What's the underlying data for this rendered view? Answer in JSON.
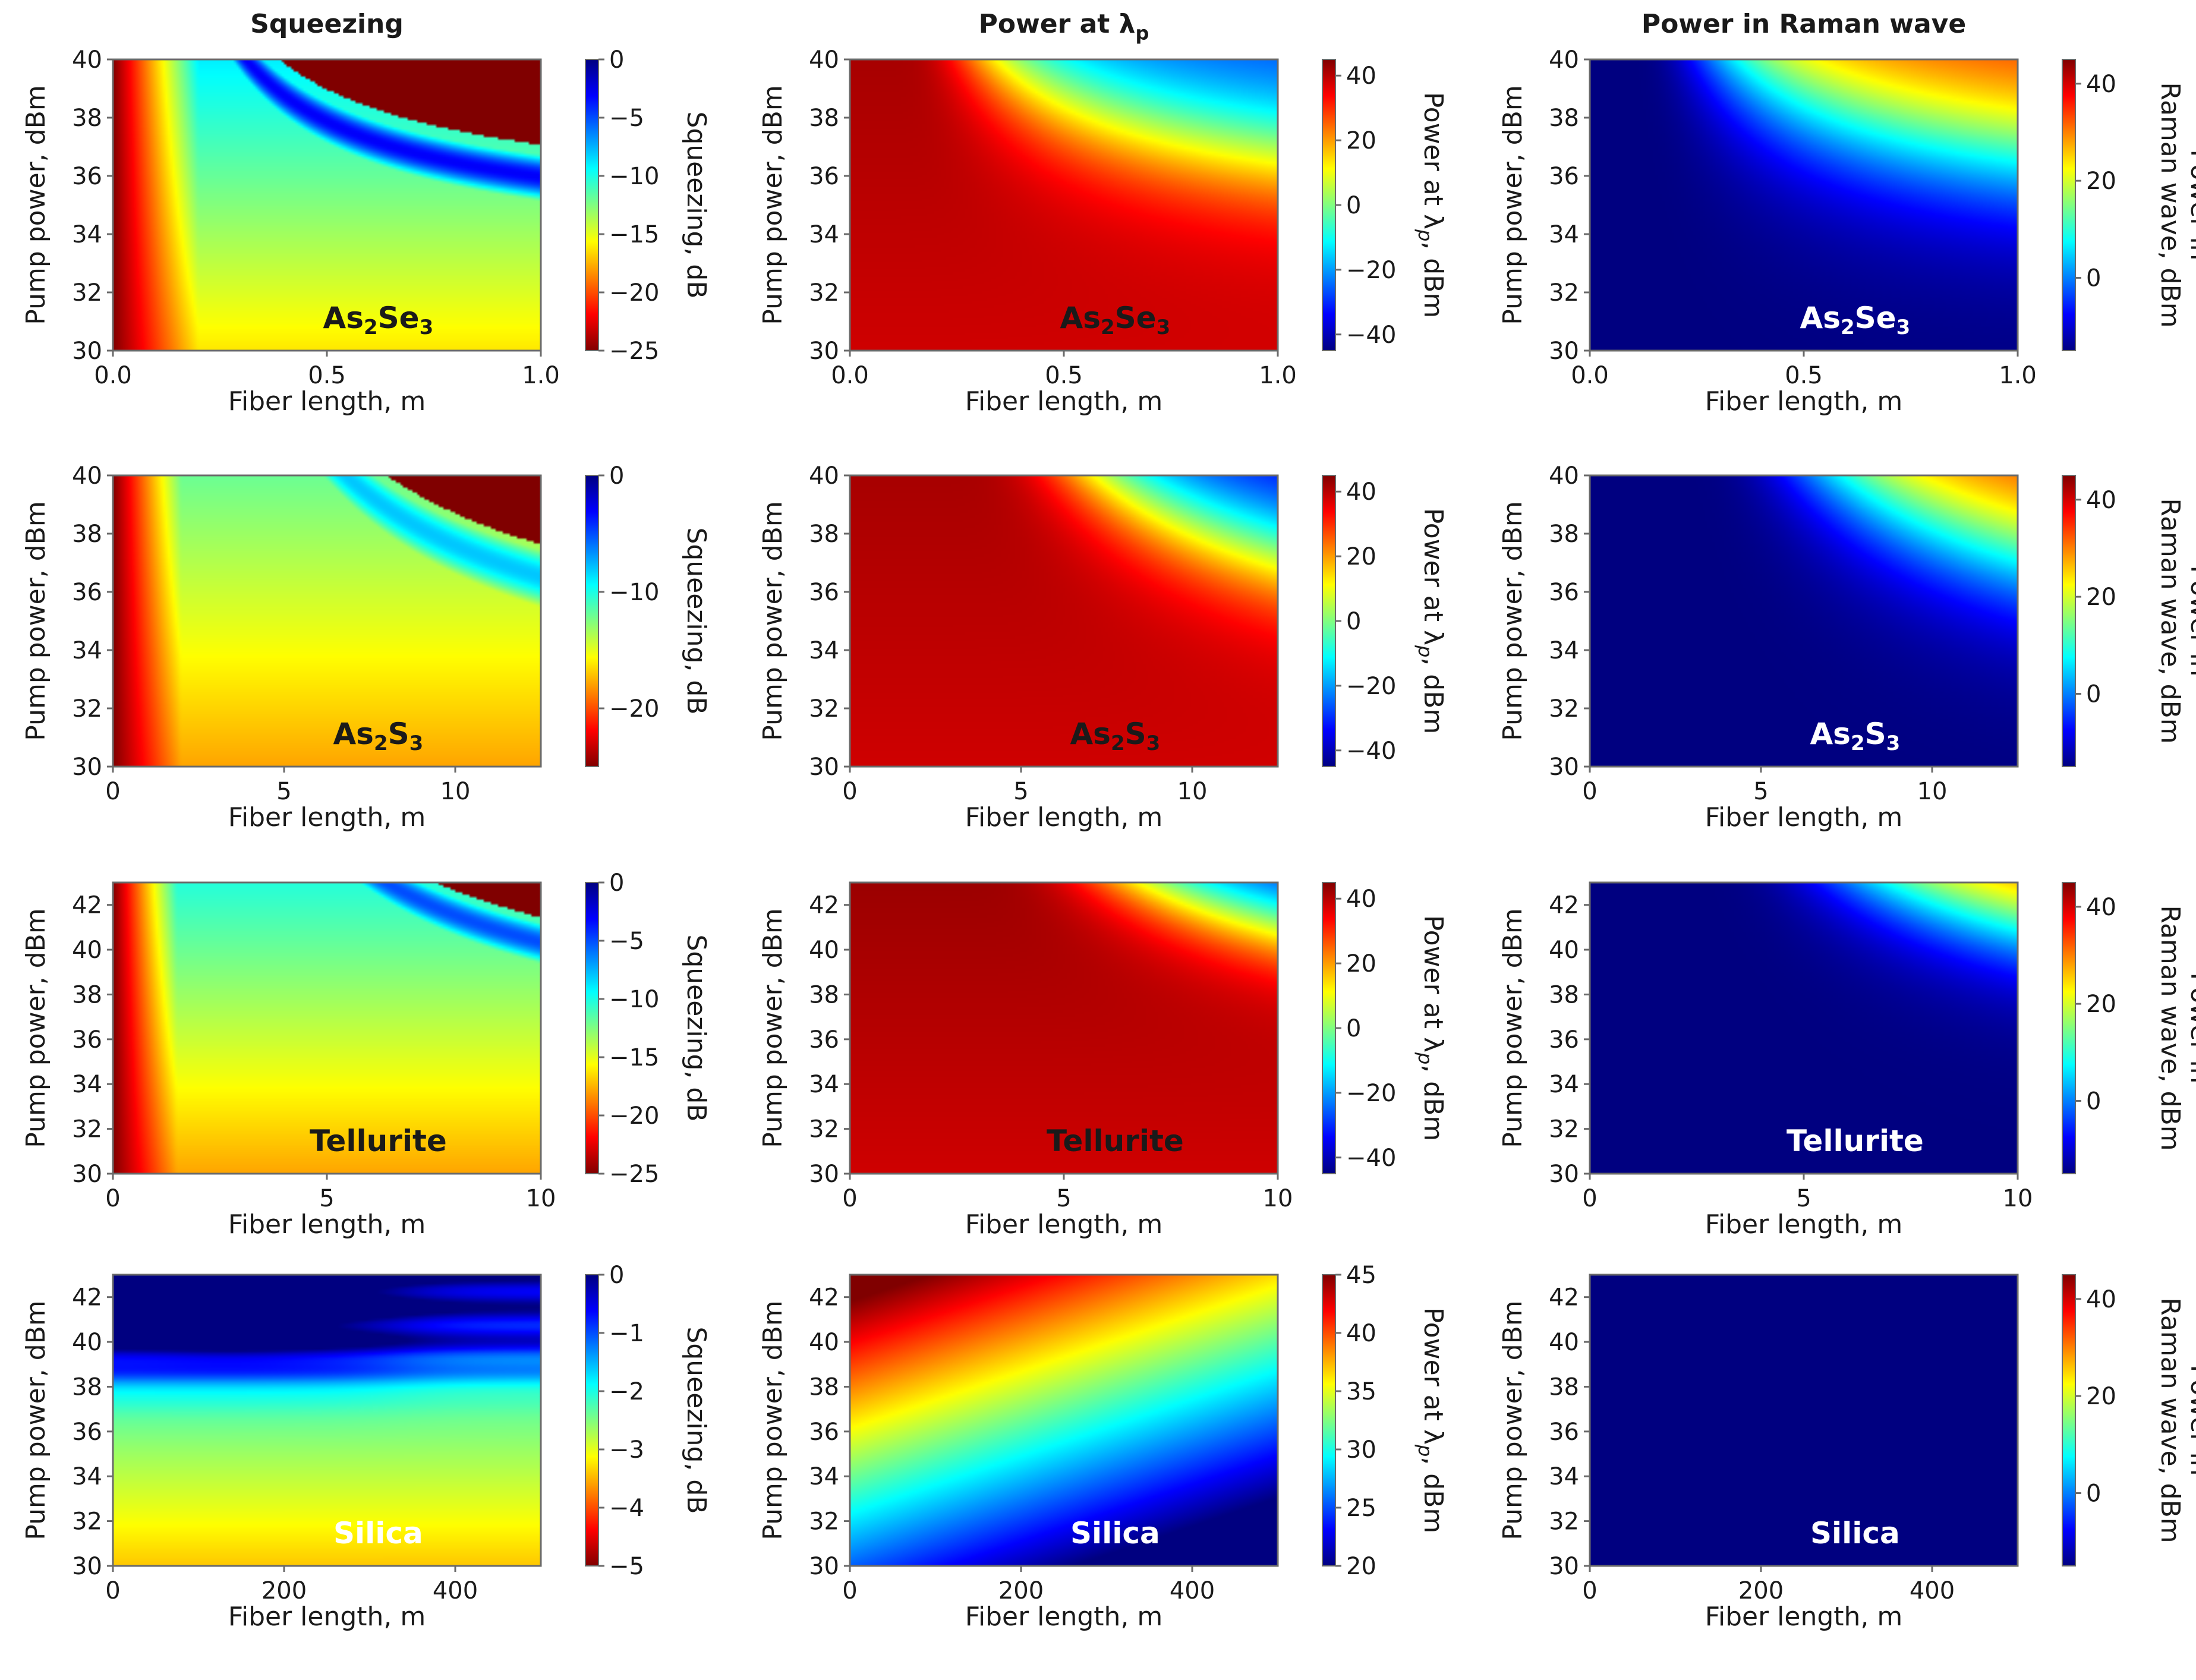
{
  "column_titles": [
    {
      "main": "Squeezing"
    },
    {
      "main": "Power at λ",
      "sub": "p"
    },
    {
      "main": "Power in Raman wave"
    }
  ],
  "colors": {
    "colormap": "jet",
    "text": "#1a1a1a",
    "frame": "#6a6a6a"
  },
  "chart_data": [
    {
      "type": "heatmap",
      "material": "As2Se3",
      "material_label": {
        "parts": [
          "As",
          "2",
          "Se",
          "3"
        ],
        "color": "dark"
      },
      "quantity": "squeezing",
      "title": "Squeezing",
      "xlabel": "Fiber length, m",
      "ylabel": "Pump power, dBm",
      "xlim": [
        0,
        1
      ],
      "ylim": [
        30,
        40
      ],
      "xticks": [
        {
          "v": 0,
          "t": "0.0"
        },
        {
          "v": 0.5,
          "t": "0.5"
        },
        {
          "v": 1,
          "t": "1.0"
        }
      ],
      "yticks": [
        30,
        32,
        34,
        36,
        38,
        40
      ],
      "colorbar": {
        "label": "Squeezing, dB",
        "range": [
          -25,
          0
        ],
        "ticks": [
          0,
          -5,
          -10,
          -15,
          -20,
          -25
        ],
        "reversed": true
      },
      "field": {
        "kind": "squeeze",
        "cross": {
          "k": 0.73,
          "y0": 34.5,
          "a": 3.1
        },
        "bandwidth": 1.1,
        "peak": -22,
        "base": -16,
        "ramp": 0.2
      }
    },
    {
      "type": "heatmap",
      "material": "As2Se3",
      "material_label": {
        "parts": [
          "As",
          "2",
          "Se",
          "3"
        ],
        "color": "dark"
      },
      "quantity": "pump_power",
      "title": "Power at λp",
      "xlabel": "Fiber length, m",
      "ylabel": "Pump power, dBm",
      "xlim": [
        0,
        1
      ],
      "ylim": [
        30,
        40
      ],
      "xticks": [
        {
          "v": 0,
          "t": "0.0"
        },
        {
          "v": 0.5,
          "t": "0.5"
        },
        {
          "v": 1,
          "t": "1.0"
        }
      ],
      "yticks": [
        30,
        32,
        34,
        36,
        38,
        40
      ],
      "colorbar": {
        "label": "Power at λp, dBm",
        "range": [
          -45,
          45
        ],
        "ticks": [
          40,
          20,
          0,
          -20,
          -40
        ],
        "reversed": false
      },
      "field": {
        "kind": "pump",
        "cross": {
          "k": 0.73,
          "y0": 34.5,
          "a": 3.1
        },
        "lo": -30,
        "width": 1.3
      }
    },
    {
      "type": "heatmap",
      "material": "As2Se3",
      "material_label": {
        "parts": [
          "As",
          "2",
          "Se",
          "3"
        ],
        "color": "light"
      },
      "quantity": "raman_power",
      "title": "Power in Raman wave",
      "xlabel": "Fiber length, m",
      "ylabel": "Pump power, dBm",
      "xlim": [
        0,
        1
      ],
      "ylim": [
        30,
        40
      ],
      "xticks": [
        {
          "v": 0,
          "t": "0.0"
        },
        {
          "v": 0.5,
          "t": "0.5"
        },
        {
          "v": 1,
          "t": "1.0"
        }
      ],
      "yticks": [
        30,
        32,
        34,
        36,
        38,
        40
      ],
      "colorbar": {
        "label": [
          "Power in",
          "Raman wave, dBm"
        ],
        "range": [
          -15,
          45
        ],
        "ticks": [
          40,
          20,
          0
        ],
        "reversed": false
      },
      "field": {
        "kind": "raman",
        "cross": {
          "k": 0.73,
          "y0": 34.5,
          "a": 3.1
        },
        "width": 1.5
      }
    },
    {
      "type": "heatmap",
      "material": "As2S3",
      "material_label": {
        "parts": [
          "As",
          "2",
          "S",
          "3"
        ],
        "color": "dark"
      },
      "quantity": "squeezing",
      "title": "Squeezing",
      "xlabel": "Fiber length, m",
      "ylabel": "Pump power, dBm",
      "xlim": [
        0,
        12.5
      ],
      "ylim": [
        30,
        40
      ],
      "xticks": [
        {
          "v": 0,
          "t": "0"
        },
        {
          "v": 5,
          "t": "5"
        },
        {
          "v": 10,
          "t": "10"
        }
      ],
      "yticks": [
        30,
        32,
        34,
        36,
        38,
        40
      ],
      "colorbar": {
        "label": "Squeezing, dB",
        "range": [
          -25,
          0
        ],
        "ticks": [
          0,
          -10,
          -20
        ],
        "reversed": true
      },
      "field": {
        "kind": "squeeze",
        "cross": {
          "k": 10,
          "y0": 32.3,
          "a": 6.2
        },
        "bandwidth": 1.5,
        "peak": -17,
        "base": -13,
        "ramp": 2
      }
    },
    {
      "type": "heatmap",
      "material": "As2S3",
      "material_label": {
        "parts": [
          "As",
          "2",
          "S",
          "3"
        ],
        "color": "dark"
      },
      "quantity": "pump_power",
      "title": "Power at λp",
      "xlabel": "Fiber length, m",
      "ylabel": "Pump power, dBm",
      "xlim": [
        0,
        12.5
      ],
      "ylim": [
        30,
        40
      ],
      "xticks": [
        {
          "v": 0,
          "t": "0"
        },
        {
          "v": 5,
          "t": "5"
        },
        {
          "v": 10,
          "t": "10"
        }
      ],
      "yticks": [
        30,
        32,
        34,
        36,
        38,
        40
      ],
      "colorbar": {
        "label": "Power at λp, dBm",
        "range": [
          -45,
          45
        ],
        "ticks": [
          40,
          20,
          0,
          -20,
          -40
        ],
        "reversed": false
      },
      "field": {
        "kind": "pump",
        "cross": {
          "k": 10,
          "y0": 32.3,
          "a": 6.2
        },
        "lo": -38,
        "width": 1.2
      }
    },
    {
      "type": "heatmap",
      "material": "As2S3",
      "material_label": {
        "parts": [
          "As",
          "2",
          "S",
          "3"
        ],
        "color": "light"
      },
      "quantity": "raman_power",
      "title": "Power in Raman wave",
      "xlabel": "Fiber length, m",
      "ylabel": "Pump power, dBm",
      "xlim": [
        0,
        12.5
      ],
      "ylim": [
        30,
        40
      ],
      "xticks": [
        {
          "v": 0,
          "t": "0"
        },
        {
          "v": 5,
          "t": "5"
        },
        {
          "v": 10,
          "t": "10"
        }
      ],
      "yticks": [
        30,
        32,
        34,
        36,
        38,
        40
      ],
      "colorbar": {
        "label": [
          "Power in",
          "Raman wave, dBm"
        ],
        "range": [
          -15,
          45
        ],
        "ticks": [
          40,
          20,
          0
        ],
        "reversed": false
      },
      "field": {
        "kind": "raman",
        "cross": {
          "k": 10,
          "y0": 32.3,
          "a": 6.2
        },
        "width": 1.4
      }
    },
    {
      "type": "heatmap",
      "material": "Tellurite",
      "material_label": {
        "parts": [
          "Tellurite"
        ],
        "color": "dark"
      },
      "quantity": "squeezing",
      "title": "Squeezing",
      "xlabel": "Fiber length, m",
      "ylabel": "Pump power, dBm",
      "xlim": [
        0,
        10
      ],
      "ylim": [
        30,
        43
      ],
      "xticks": [
        {
          "v": 0,
          "t": "0"
        },
        {
          "v": 5,
          "t": "5"
        },
        {
          "v": 10,
          "t": "10"
        }
      ],
      "yticks": [
        30,
        32,
        34,
        36,
        38,
        40,
        42
      ],
      "colorbar": {
        "label": "Squeezing, dB",
        "range": [
          -25,
          0
        ],
        "ticks": [
          0,
          -5,
          -10,
          -15,
          -20,
          -25
        ],
        "reversed": true
      },
      "field": {
        "kind": "squeeze",
        "cross": {
          "k": 7.3,
          "y0": 35.5,
          "a": 7.5
        },
        "bandwidth": 1.4,
        "peak": -20,
        "base": -13,
        "ramp": 1.5
      }
    },
    {
      "type": "heatmap",
      "material": "Tellurite",
      "material_label": {
        "parts": [
          "Tellurite"
        ],
        "color": "dark"
      },
      "quantity": "pump_power",
      "title": "Power at λp",
      "xlabel": "Fiber length, m",
      "ylabel": "Pump power, dBm",
      "xlim": [
        0,
        10
      ],
      "ylim": [
        30,
        43
      ],
      "xticks": [
        {
          "v": 0,
          "t": "0"
        },
        {
          "v": 5,
          "t": "5"
        },
        {
          "v": 10,
          "t": "10"
        }
      ],
      "yticks": [
        30,
        32,
        34,
        36,
        38,
        40,
        42
      ],
      "colorbar": {
        "label": "Power at λp, dBm",
        "range": [
          -45,
          45
        ],
        "ticks": [
          40,
          20,
          0,
          -20,
          -40
        ],
        "reversed": false
      },
      "field": {
        "kind": "pump",
        "cross": {
          "k": 7.3,
          "y0": 35.5,
          "a": 7.5
        },
        "lo": -38,
        "width": 1.2
      }
    },
    {
      "type": "heatmap",
      "material": "Tellurite",
      "material_label": {
        "parts": [
          "Tellurite"
        ],
        "color": "light"
      },
      "quantity": "raman_power",
      "title": "Power in Raman wave",
      "xlabel": "Fiber length, m",
      "ylabel": "Pump power, dBm",
      "xlim": [
        0,
        10
      ],
      "ylim": [
        30,
        43
      ],
      "xticks": [
        {
          "v": 0,
          "t": "0"
        },
        {
          "v": 5,
          "t": "5"
        },
        {
          "v": 10,
          "t": "10"
        }
      ],
      "yticks": [
        30,
        32,
        34,
        36,
        38,
        40,
        42
      ],
      "colorbar": {
        "label": [
          "Power in",
          "Raman wave, dBm"
        ],
        "range": [
          -15,
          45
        ],
        "ticks": [
          40,
          20,
          0
        ],
        "reversed": false
      },
      "field": {
        "kind": "raman",
        "cross": {
          "k": 7.3,
          "y0": 35.5,
          "a": 7.5
        },
        "width": 1.4
      }
    },
    {
      "type": "heatmap",
      "material": "Silica",
      "material_label": {
        "parts": [
          "Silica"
        ],
        "color": "light"
      },
      "quantity": "squeezing",
      "title": "Squeezing",
      "xlabel": "Fiber length, m",
      "ylabel": "Pump power, dBm",
      "xlim": [
        0,
        500
      ],
      "ylim": [
        30,
        43
      ],
      "xticks": [
        {
          "v": 0,
          "t": "0"
        },
        {
          "v": 200,
          "t": "200"
        },
        {
          "v": 400,
          "t": "400"
        }
      ],
      "yticks": [
        30,
        32,
        34,
        36,
        38,
        40,
        42
      ],
      "colorbar": {
        "label": "Squeezing, dB",
        "range": [
          -5,
          0
        ],
        "ticks": [
          0,
          -1,
          -2,
          -3,
          -4,
          -5
        ],
        "reversed": true
      },
      "field": {
        "kind": "silica_squeeze"
      }
    },
    {
      "type": "heatmap",
      "material": "Silica",
      "material_label": {
        "parts": [
          "Silica"
        ],
        "color": "light"
      },
      "quantity": "pump_power",
      "title": "Power at λp",
      "xlabel": "Fiber length, m",
      "ylabel": "Pump power, dBm",
      "xlim": [
        0,
        500
      ],
      "ylim": [
        30,
        43
      ],
      "xticks": [
        {
          "v": 0,
          "t": "0"
        },
        {
          "v": 200,
          "t": "200"
        },
        {
          "v": 400,
          "t": "400"
        }
      ],
      "yticks": [
        30,
        32,
        34,
        36,
        38,
        40,
        42
      ],
      "colorbar": {
        "label": "Power at λp, dBm",
        "range": [
          20,
          45
        ],
        "ticks": [
          45,
          40,
          35,
          30,
          25,
          20
        ],
        "reversed": false
      },
      "field": {
        "kind": "silica_pump"
      }
    },
    {
      "type": "heatmap",
      "material": "Silica",
      "material_label": {
        "parts": [
          "Silica"
        ],
        "color": "light"
      },
      "quantity": "raman_power",
      "title": "Power in Raman wave",
      "xlabel": "Fiber length, m",
      "ylabel": "Pump power, dBm",
      "xlim": [
        0,
        500
      ],
      "ylim": [
        30,
        43
      ],
      "xticks": [
        {
          "v": 0,
          "t": "0"
        },
        {
          "v": 200,
          "t": "200"
        },
        {
          "v": 400,
          "t": "400"
        }
      ],
      "yticks": [
        30,
        32,
        34,
        36,
        38,
        40,
        42
      ],
      "colorbar": {
        "label": [
          "Power in",
          "Raman wave, dBm"
        ],
        "range": [
          -15,
          45
        ],
        "ticks": [
          40,
          20,
          0
        ],
        "reversed": false
      },
      "field": {
        "kind": "flat",
        "value": -15
      }
    }
  ]
}
